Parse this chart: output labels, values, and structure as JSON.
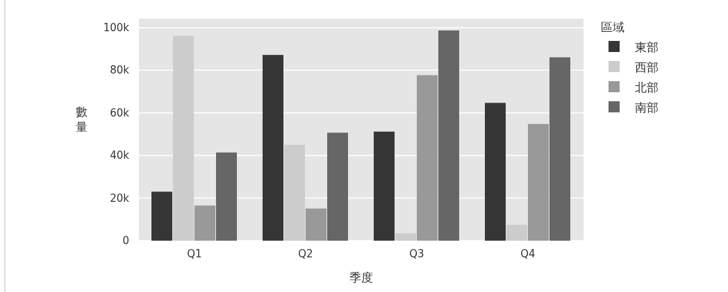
{
  "chart_data": {
    "type": "bar",
    "xlabel": "季度",
    "ylabel": "數量",
    "legend_title": "區域",
    "categories": [
      "Q1",
      "Q2",
      "Q3",
      "Q4"
    ],
    "series": [
      {
        "name": "東部",
        "color": "#363636",
        "values": [
          23000,
          87200,
          51200,
          64700
        ]
      },
      {
        "name": "西部",
        "color": "#cccccc",
        "values": [
          96200,
          45000,
          3500,
          7500
        ]
      },
      {
        "name": "北部",
        "color": "#999999",
        "values": [
          16500,
          15100,
          77700,
          54800
        ]
      },
      {
        "name": "南部",
        "color": "#666666",
        "values": [
          41400,
          50700,
          98700,
          86100
        ]
      }
    ],
    "ylim": [
      0,
      104200
    ],
    "yticks": [
      0,
      {
        "value": 20000,
        "label": "20k"
      },
      {
        "value": 40000,
        "label": "40k"
      },
      {
        "value": 60000,
        "label": "60k"
      },
      {
        "value": 80000,
        "label": "80k"
      },
      {
        "value": 100000,
        "label": "100k"
      }
    ],
    "grid": "y",
    "legend": "top right"
  }
}
